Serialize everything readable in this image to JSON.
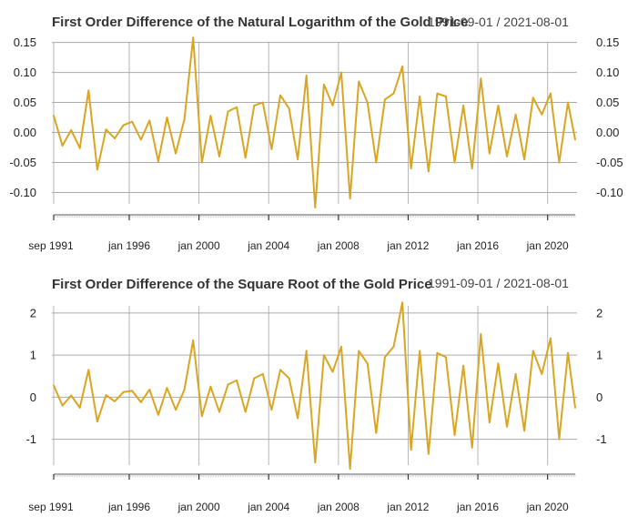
{
  "chart_data": [
    {
      "type": "line",
      "title": "First Order Difference of the Natural Logarithm of the Gold Price",
      "date_range": "1991-09-01 / 2021-08-01",
      "x_tick_labels": [
        "sep 1991",
        "jan 1996",
        "jan 2000",
        "jan 2004",
        "jan 2008",
        "jan 2012",
        "jan 2016",
        "jan 2020"
      ],
      "x_ticks": [
        "1991-09",
        "1996-01",
        "2000-01",
        "2004-01",
        "2008-01",
        "2012-01",
        "2016-01",
        "2020-01"
      ],
      "y_tick_labels": [
        "0.15",
        "0.10",
        "0.05",
        "0.00",
        "-0.05",
        "-0.10"
      ],
      "y_ticks": [
        0.15,
        0.1,
        0.05,
        0.0,
        -0.05,
        -0.1
      ],
      "ylim": [
        -0.125,
        0.16
      ],
      "grid": true,
      "series_color": "#DAA520",
      "series": [
        {
          "x": [
            "1991-09",
            "1992-03",
            "1992-09",
            "1993-03",
            "1993-09",
            "1994-03",
            "1994-09",
            "1995-03",
            "1995-09",
            "1996-03",
            "1996-09",
            "1997-03",
            "1997-09",
            "1998-03",
            "1998-09",
            "1999-03",
            "1999-09",
            "2000-03",
            "2000-09",
            "2001-03",
            "2001-09",
            "2002-03",
            "2002-09",
            "2003-03",
            "2003-09",
            "2004-03",
            "2004-09",
            "2005-03",
            "2005-09",
            "2006-03",
            "2006-09",
            "2007-03",
            "2007-09",
            "2008-03",
            "2008-09",
            "2009-03",
            "2009-09",
            "2010-03",
            "2010-09",
            "2011-03",
            "2011-09",
            "2012-03",
            "2012-09",
            "2013-03",
            "2013-09",
            "2014-03",
            "2014-09",
            "2015-03",
            "2015-09",
            "2016-03",
            "2016-09",
            "2017-03",
            "2017-09",
            "2018-03",
            "2018-09",
            "2019-03",
            "2019-09",
            "2020-03",
            "2020-09",
            "2021-03",
            "2021-08"
          ],
          "values": [
            0.028,
            -0.022,
            0.004,
            -0.026,
            0.07,
            -0.062,
            0.005,
            -0.01,
            0.012,
            0.018,
            -0.012,
            0.02,
            -0.048,
            0.025,
            -0.035,
            0.022,
            0.158,
            -0.05,
            0.028,
            -0.04,
            0.035,
            0.042,
            -0.042,
            0.045,
            0.05,
            -0.028,
            0.062,
            0.04,
            -0.045,
            0.095,
            -0.125,
            0.08,
            0.045,
            0.1,
            -0.11,
            0.085,
            0.05,
            -0.05,
            0.055,
            0.065,
            0.11,
            -0.06,
            0.06,
            -0.065,
            0.065,
            0.06,
            -0.05,
            0.045,
            -0.06,
            0.09,
            -0.035,
            0.045,
            -0.04,
            0.03,
            -0.045,
            0.058,
            0.03,
            0.065,
            -0.05,
            0.05,
            -0.012
          ]
        }
      ]
    },
    {
      "type": "line",
      "title": "First Order Difference of the Square Root of the Gold Price",
      "date_range": "1991-09-01 / 2021-08-01",
      "x_tick_labels": [
        "sep 1991",
        "jan 1996",
        "jan 2000",
        "jan 2004",
        "jan 2008",
        "jan 2012",
        "jan 2016",
        "jan 2020"
      ],
      "x_ticks": [
        "1991-09",
        "1996-01",
        "2000-01",
        "2004-01",
        "2008-01",
        "2012-01",
        "2016-01",
        "2020-01"
      ],
      "y_tick_labels": [
        "2",
        "1",
        "0",
        "-1"
      ],
      "y_ticks": [
        2,
        1,
        0,
        -1
      ],
      "ylim": [
        -1.7,
        2.3
      ],
      "grid": true,
      "series_color": "#DAA520",
      "series": [
        {
          "x": [
            "1991-09",
            "1992-03",
            "1992-09",
            "1993-03",
            "1993-09",
            "1994-03",
            "1994-09",
            "1995-03",
            "1995-09",
            "1996-03",
            "1996-09",
            "1997-03",
            "1997-09",
            "1998-03",
            "1998-09",
            "1999-03",
            "1999-09",
            "2000-03",
            "2000-09",
            "2001-03",
            "2001-09",
            "2002-03",
            "2002-09",
            "2003-03",
            "2003-09",
            "2004-03",
            "2004-09",
            "2005-03",
            "2005-09",
            "2006-03",
            "2006-09",
            "2007-03",
            "2007-09",
            "2008-03",
            "2008-09",
            "2009-03",
            "2009-09",
            "2010-03",
            "2010-09",
            "2011-03",
            "2011-09",
            "2012-03",
            "2012-09",
            "2013-03",
            "2013-09",
            "2014-03",
            "2014-09",
            "2015-03",
            "2015-09",
            "2016-03",
            "2016-09",
            "2017-03",
            "2017-09",
            "2018-03",
            "2018-09",
            "2019-03",
            "2019-09",
            "2020-03",
            "2020-09",
            "2021-03",
            "2021-08"
          ],
          "values": [
            0.28,
            -0.2,
            0.04,
            -0.25,
            0.65,
            -0.58,
            0.05,
            -0.1,
            0.12,
            0.15,
            -0.12,
            0.18,
            -0.42,
            0.22,
            -0.3,
            0.18,
            1.35,
            -0.45,
            0.25,
            -0.35,
            0.3,
            0.4,
            -0.35,
            0.45,
            0.55,
            -0.3,
            0.65,
            0.45,
            -0.5,
            1.1,
            -1.55,
            1.0,
            0.6,
            1.2,
            -1.7,
            1.1,
            0.8,
            -0.85,
            0.95,
            1.2,
            2.25,
            -1.25,
            1.1,
            -1.35,
            1.05,
            0.95,
            -0.9,
            0.75,
            -1.2,
            1.5,
            -0.6,
            0.8,
            -0.7,
            0.55,
            -0.8,
            1.1,
            0.55,
            1.4,
            -1.0,
            1.05,
            -0.25
          ]
        }
      ]
    }
  ]
}
